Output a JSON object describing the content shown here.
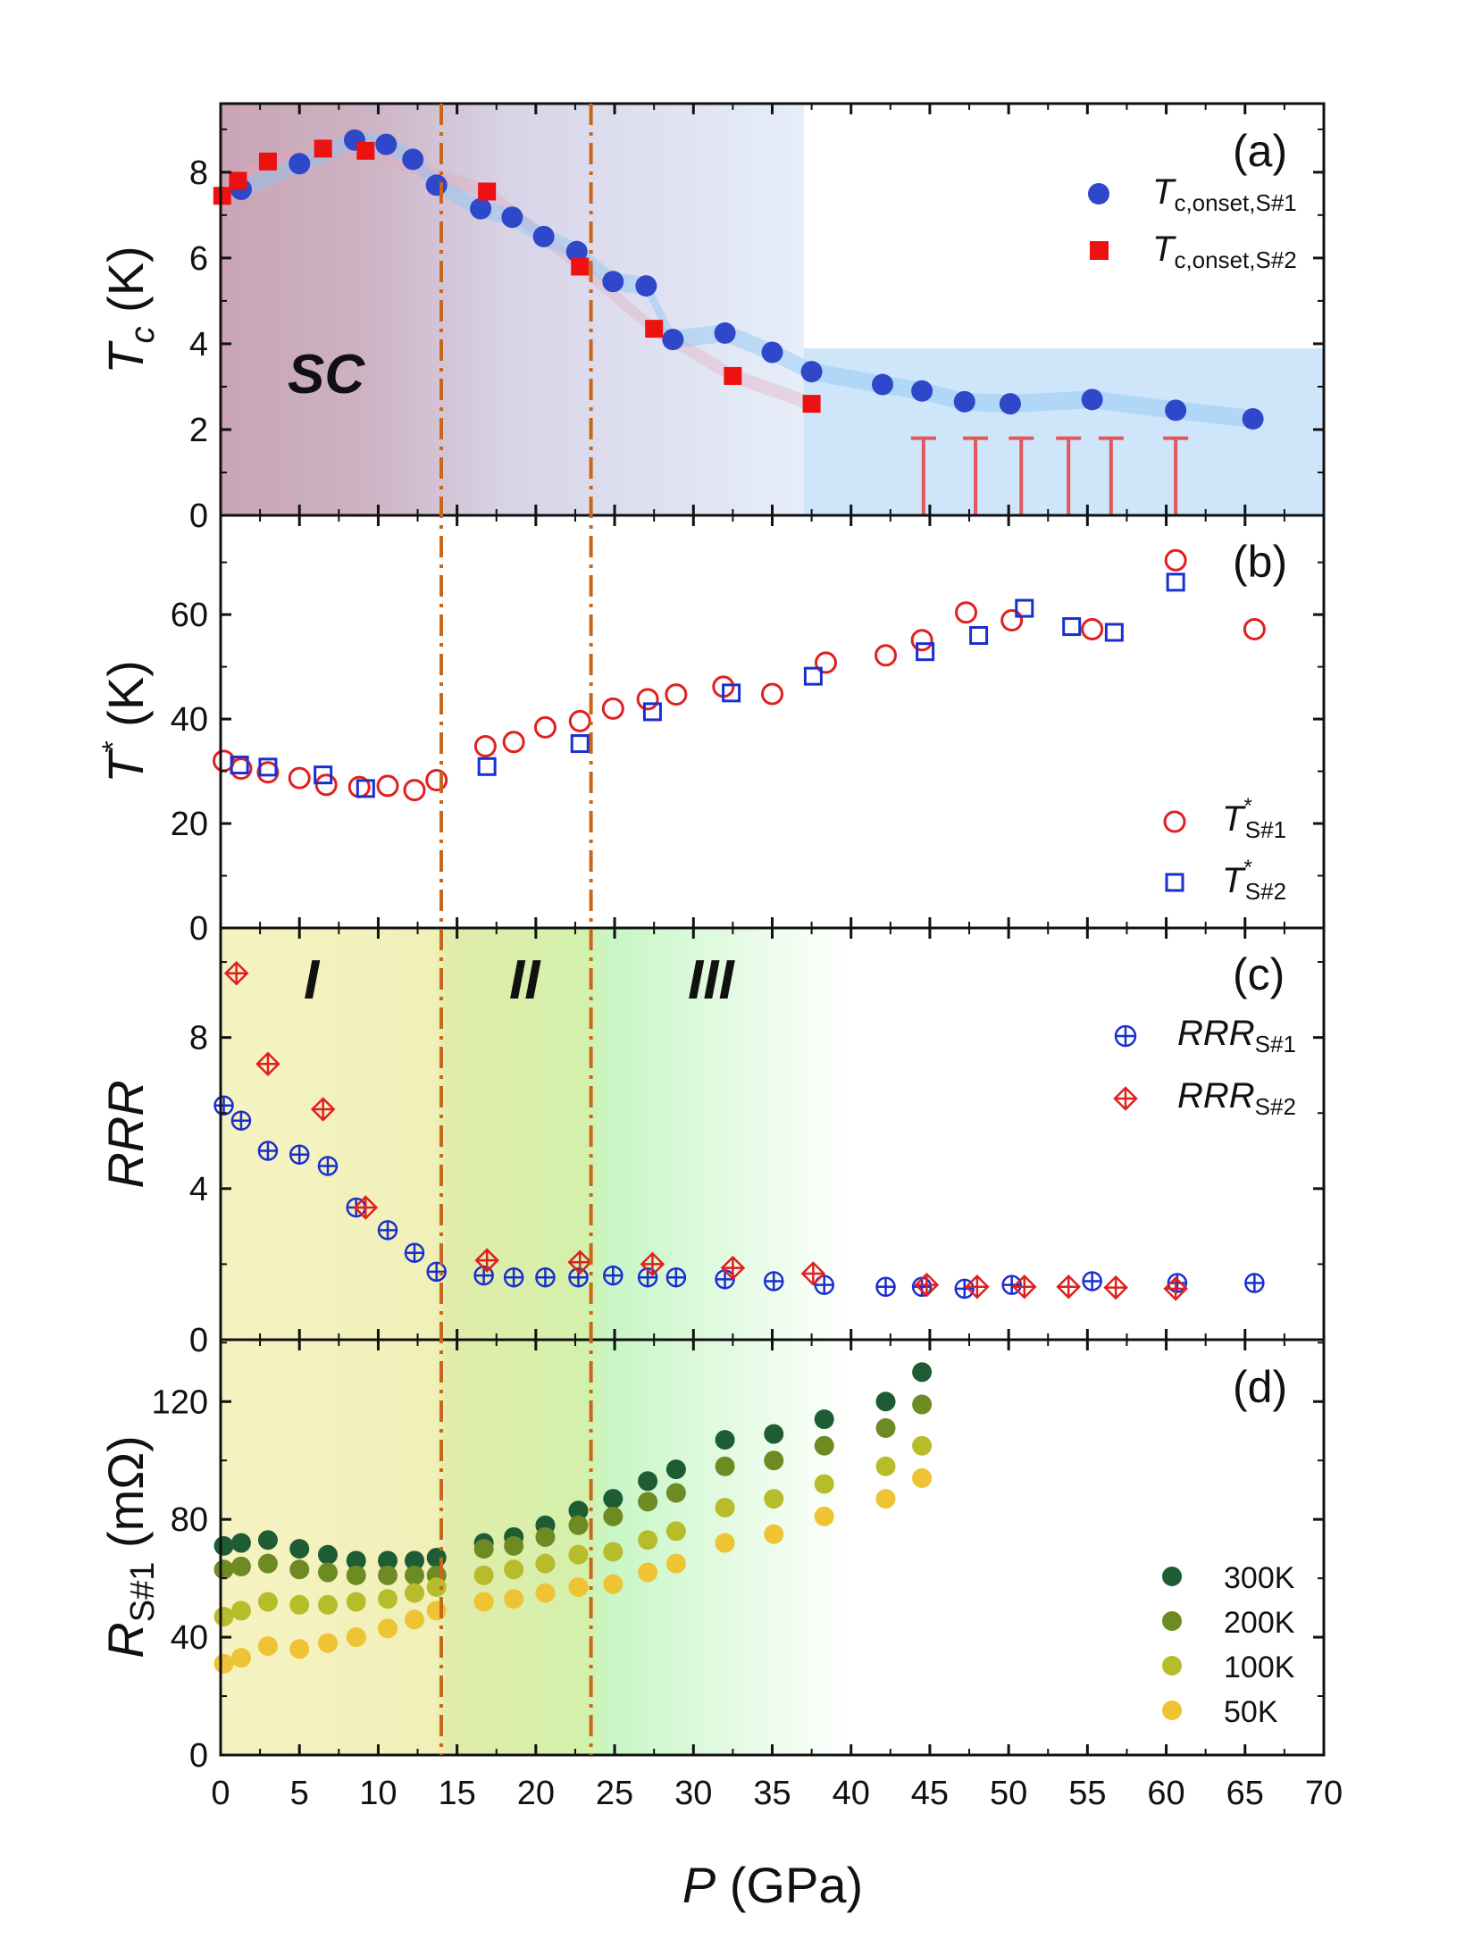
{
  "colors": {
    "blue": "#2f47c9",
    "red": "#ee1111",
    "red_open": "#e02020",
    "blue_open": "#1a2fd0",
    "dashline": "#c8661a",
    "err": "#e2575c",
    "g300": "#1e5d33",
    "g200": "#6e8a22",
    "g100": "#b7bc2a",
    "g50": "#eec334"
  },
  "xaxis": {
    "label_sym": "P",
    "label_unit": " (GPa)",
    "range": [
      0,
      70
    ],
    "ticks": [
      0,
      5,
      10,
      15,
      20,
      25,
      30,
      35,
      40,
      45,
      50,
      55,
      60,
      65,
      70
    ]
  },
  "boundaries": [
    14,
    23.5
  ],
  "chart_data": [
    {
      "panel": "a",
      "type": "scatter",
      "tag": "(a)",
      "ylabel": {
        "sym": "T",
        "sub": "c",
        "unit": " (K)"
      },
      "ylim": [
        0,
        9.6
      ],
      "yticks": [
        0,
        2,
        4,
        6,
        8
      ],
      "region_label": "SC",
      "series": [
        {
          "name": "Tc,onset,S#1",
          "sym": "T",
          "sub": "c,onset,S#1",
          "marker": "circle-filled",
          "color": "#2f47c9",
          "x": [
            1.3,
            5,
            8.5,
            10.5,
            12.2,
            13.7,
            16.5,
            18.5,
            20.5,
            22.6,
            24.9,
            27,
            28.7,
            32,
            35,
            37.5,
            42,
            44.5,
            47.2,
            50.1,
            55.3,
            60.6,
            65.5
          ],
          "y": [
            7.6,
            8.2,
            8.75,
            8.65,
            8.3,
            7.7,
            7.15,
            6.95,
            6.5,
            6.15,
            5.45,
            5.35,
            4.1,
            4.25,
            3.8,
            3.35,
            3.05,
            2.9,
            2.65,
            2.6,
            2.7,
            2.45,
            2.25
          ]
        },
        {
          "name": "Tc,onset,S#2",
          "sym": "T",
          "sub": "c,onset,S#2",
          "marker": "square-filled",
          "color": "#ee1111",
          "x": [
            0.1,
            1.1,
            3,
            6.5,
            9.2,
            16.9,
            22.8,
            27.5,
            32.5,
            37.5
          ],
          "y": [
            7.45,
            7.8,
            8.25,
            8.55,
            8.5,
            7.55,
            5.8,
            4.35,
            3.25,
            2.6
          ]
        }
      ],
      "upper_limits": {
        "x": [
          44.6,
          47.9,
          50.8,
          53.8,
          56.5,
          60.6
        ],
        "y": 1.8
      }
    },
    {
      "panel": "b",
      "type": "scatter",
      "tag": "(b)",
      "ylabel": {
        "sym": "T",
        "sup": "*",
        "unit": " (K)"
      },
      "ylim": [
        0,
        79
      ],
      "yticks": [
        0,
        20,
        40,
        60
      ],
      "series": [
        {
          "name": "T*S#1",
          "sym": "T",
          "sup": "*",
          "sub": "S#1",
          "marker": "circle-open",
          "color": "#e02020",
          "x": [
            0.2,
            1.3,
            3,
            5,
            6.7,
            8.8,
            10.6,
            12.3,
            13.7,
            16.8,
            18.6,
            20.6,
            22.8,
            24.9,
            27.1,
            28.9,
            31.9,
            35,
            38.4,
            42.2,
            44.5,
            47.3,
            50.2,
            55.3,
            60.6,
            65.6
          ],
          "y": [
            32,
            30.5,
            29.8,
            28.7,
            27.4,
            27,
            27.2,
            26.4,
            28.3,
            34.8,
            35.6,
            38.4,
            39.6,
            42,
            43.8,
            44.7,
            46.2,
            44.8,
            50.8,
            52.2,
            55.1,
            60.4,
            58.9,
            57.2,
            70.4,
            57.2
          ]
        },
        {
          "name": "T*S#2",
          "sym": "T",
          "sup": "*",
          "sub": "S#2",
          "marker": "square-open",
          "color": "#1a2fd0",
          "x": [
            1.2,
            3,
            6.5,
            9.2,
            16.9,
            22.8,
            27.4,
            32.4,
            37.6,
            44.7,
            48.1,
            51,
            54,
            56.7,
            60.6
          ],
          "y": [
            31.2,
            30.8,
            29.3,
            26.7,
            30.9,
            35.3,
            41.4,
            45,
            48.2,
            52.9,
            56,
            61.2,
            57.7,
            56.6,
            66.2
          ]
        }
      ]
    },
    {
      "panel": "c",
      "type": "scatter",
      "tag": "(c)",
      "ylabel": {
        "sym": "RRR"
      },
      "ylim": [
        0,
        10.9
      ],
      "yticks": [
        0,
        4,
        8
      ],
      "region_labels": [
        "I",
        "II",
        "III"
      ],
      "series": [
        {
          "name": "RRRS#1",
          "sym": "RRR",
          "sub": "S#1",
          "marker": "circle-plus",
          "color": "#1a2fd0",
          "x": [
            0.2,
            1.3,
            3,
            5,
            6.8,
            8.6,
            10.6,
            12.3,
            13.7,
            16.7,
            18.6,
            20.6,
            22.7,
            24.9,
            27.1,
            28.9,
            32,
            35.1,
            38.3,
            42.2,
            44.5,
            47.2,
            50.2,
            55.3,
            60.7,
            65.6
          ],
          "y": [
            6.2,
            5.8,
            5.0,
            4.9,
            4.6,
            3.5,
            2.9,
            2.3,
            1.8,
            1.7,
            1.65,
            1.65,
            1.65,
            1.7,
            1.65,
            1.65,
            1.6,
            1.55,
            1.45,
            1.4,
            1.4,
            1.35,
            1.45,
            1.55,
            1.5,
            1.5
          ]
        },
        {
          "name": "RRRS#2",
          "sym": "RRR",
          "sub": "S#2",
          "marker": "diamond-plus",
          "color": "#e02020",
          "x": [
            1,
            3,
            6.5,
            9.2,
            16.9,
            22.8,
            27.4,
            32.5,
            37.6,
            44.8,
            48,
            51,
            53.8,
            56.8,
            60.6
          ],
          "y": [
            9.7,
            7.3,
            6.1,
            3.5,
            2.1,
            2.05,
            2.0,
            1.9,
            1.75,
            1.45,
            1.4,
            1.4,
            1.4,
            1.38,
            1.35
          ]
        }
      ]
    },
    {
      "panel": "d",
      "type": "scatter",
      "tag": "(d)",
      "ylabel": {
        "sym": "R",
        "sub": "S#1",
        "unit": " (mΩ)"
      },
      "ylim": [
        0,
        141
      ],
      "yticks": [
        0,
        40,
        80,
        120
      ],
      "x": [
        0.2,
        1.3,
        3,
        5,
        6.8,
        8.6,
        10.6,
        12.3,
        13.7,
        16.7,
        18.6,
        20.6,
        22.7,
        24.9,
        27.1,
        28.9,
        32,
        35.1,
        38.3,
        42.2,
        44.5
      ],
      "series": [
        {
          "name": "300K",
          "color": "#1e5d33",
          "y": [
            71,
            72,
            73,
            70,
            68,
            66,
            66,
            66,
            67,
            72,
            74,
            78,
            83,
            87,
            93,
            97,
            107,
            109,
            114,
            120,
            130
          ]
        },
        {
          "name": "200K",
          "color": "#6e8a22",
          "y": [
            63,
            64,
            65,
            63,
            62,
            61,
            61,
            61,
            61,
            70,
            71,
            74,
            78,
            81,
            86,
            89,
            98,
            100,
            105,
            111,
            119
          ]
        },
        {
          "name": "100K",
          "color": "#b7bc2a",
          "y": [
            47,
            49,
            52,
            51,
            51,
            52,
            53,
            55,
            57,
            61,
            63,
            65,
            68,
            69,
            73,
            76,
            84,
            87,
            92,
            98,
            105
          ]
        },
        {
          "name": "50K",
          "color": "#eec334",
          "y": [
            31,
            33,
            37,
            36,
            38,
            40,
            43,
            46,
            49,
            52,
            53,
            55,
            57,
            58,
            62,
            65,
            72,
            75,
            81,
            87,
            94
          ]
        }
      ]
    }
  ]
}
